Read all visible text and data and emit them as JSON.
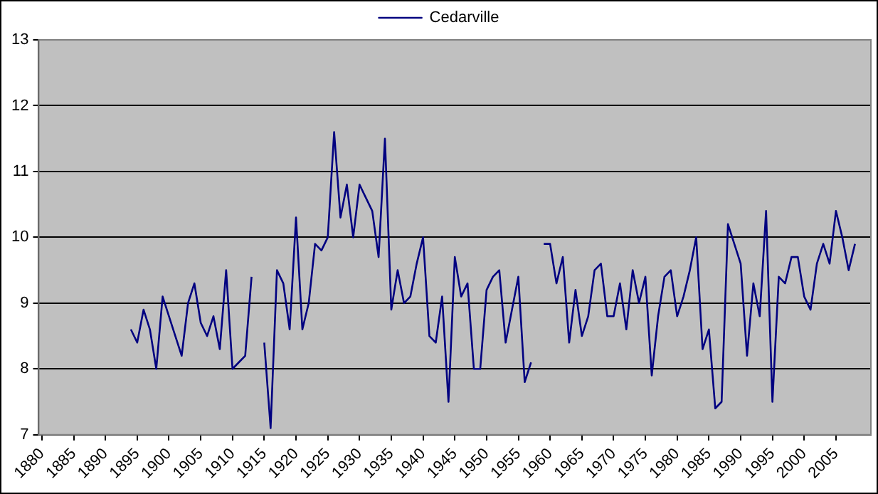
{
  "chart_data": {
    "type": "line",
    "legend": "top",
    "grid": "y",
    "marker": "none",
    "line_style": "solid",
    "x": [
      1894,
      1895,
      1896,
      1897,
      1898,
      1899,
      1900,
      1901,
      1902,
      1903,
      1904,
      1905,
      1906,
      1907,
      1908,
      1909,
      1910,
      1911,
      1912,
      1913,
      1914,
      1915,
      1916,
      1917,
      1918,
      1919,
      1920,
      1921,
      1922,
      1923,
      1924,
      1925,
      1926,
      1927,
      1928,
      1929,
      1930,
      1931,
      1932,
      1933,
      1934,
      1935,
      1936,
      1937,
      1938,
      1939,
      1940,
      1941,
      1942,
      1943,
      1944,
      1945,
      1946,
      1947,
      1948,
      1949,
      1950,
      1951,
      1952,
      1953,
      1954,
      1955,
      1956,
      1957,
      1958,
      1959,
      1960,
      1961,
      1962,
      1963,
      1964,
      1965,
      1966,
      1967,
      1968,
      1969,
      1970,
      1971,
      1972,
      1973,
      1974,
      1975,
      1976,
      1977,
      1978,
      1979,
      1980,
      1981,
      1982,
      1983,
      1984,
      1985,
      1986,
      1987,
      1988,
      1989,
      1990,
      1991,
      1992,
      1993,
      1994,
      1995,
      1996,
      1997,
      1998,
      1999,
      2000,
      2001,
      2002,
      2003,
      2004,
      2005,
      2006,
      2007,
      2008
    ],
    "xlim": [
      1879.5,
      2010.5
    ],
    "xticks": [
      1880,
      1885,
      1890,
      1895,
      1900,
      1905,
      1910,
      1915,
      1920,
      1925,
      1930,
      1935,
      1940,
      1945,
      1950,
      1955,
      1960,
      1965,
      1970,
      1975,
      1980,
      1985,
      1990,
      1995,
      2000,
      2005
    ],
    "ylim": [
      7,
      13
    ],
    "yticks": [
      7,
      8,
      9,
      10,
      11,
      12,
      13
    ],
    "series": [
      {
        "name": "Cedarville",
        "color": "#000080",
        "values": [
          8.6,
          8.4,
          8.9,
          8.6,
          8.0,
          9.1,
          8.8,
          8.5,
          8.2,
          9.0,
          9.3,
          8.7,
          8.5,
          8.8,
          8.3,
          9.5,
          8.0,
          8.1,
          8.2,
          9.4,
          null,
          8.4,
          7.1,
          9.5,
          9.3,
          8.6,
          10.3,
          8.6,
          9.0,
          9.9,
          9.8,
          10.0,
          11.6,
          10.3,
          10.8,
          10.0,
          10.8,
          10.6,
          10.4,
          9.7,
          11.5,
          8.9,
          9.5,
          9.0,
          9.1,
          9.6,
          10.0,
          8.5,
          8.4,
          9.1,
          7.5,
          9.7,
          9.1,
          9.3,
          8.0,
          8.0,
          9.2,
          9.4,
          9.5,
          8.4,
          8.9,
          9.4,
          7.8,
          8.1,
          null,
          9.9,
          9.9,
          9.3,
          9.7,
          8.4,
          9.2,
          8.5,
          8.8,
          9.5,
          9.6,
          8.8,
          8.8,
          9.3,
          8.6,
          9.5,
          9.0,
          9.4,
          7.9,
          8.8,
          9.4,
          9.5,
          8.8,
          9.1,
          9.5,
          10.0,
          8.3,
          8.6,
          7.4,
          7.5,
          10.2,
          9.9,
          9.6,
          8.2,
          9.3,
          8.8,
          10.4,
          7.5,
          9.4,
          9.3,
          9.7,
          9.7,
          9.1,
          8.9,
          9.6,
          9.9,
          9.6,
          10.4,
          10.0,
          9.5,
          9.9
        ]
      }
    ]
  }
}
